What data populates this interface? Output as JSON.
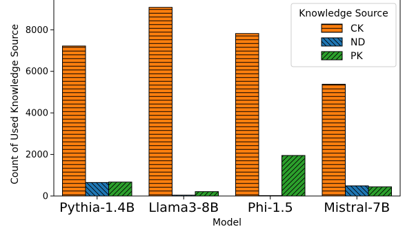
{
  "chart_data": {
    "type": "bar",
    "title": "",
    "xlabel": "Model",
    "ylabel": "Count of Used Knowledge Source",
    "categories": [
      "Pythia-1.4B",
      "Llama3-8B",
      "Phi-1.5",
      "Mistral-7B"
    ],
    "ylim": [
      0,
      9500
    ],
    "yticks": [
      0,
      2000,
      4000,
      6000,
      8000
    ],
    "ytick_labels": [
      "0",
      "2000",
      "4000",
      "6000",
      "8000"
    ],
    "grid": false,
    "legend": {
      "title": "Knowledge Source",
      "placement": "top-right"
    },
    "series": [
      {
        "name": "CK",
        "color": "#ff7f0e",
        "hatch": "horizontal-lines",
        "values": [
          7220,
          9080,
          7820,
          5380
        ]
      },
      {
        "name": "ND",
        "color": "#1f77b4",
        "hatch": "back-diagonal",
        "values": [
          650,
          40,
          20,
          490
        ]
      },
      {
        "name": "PK",
        "color": "#2ca02c",
        "hatch": "forward-diagonal",
        "values": [
          670,
          210,
          1950,
          440
        ]
      }
    ]
  }
}
